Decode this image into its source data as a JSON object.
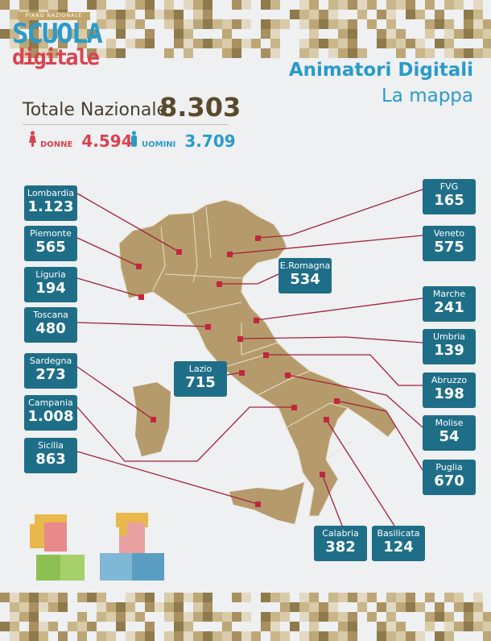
{
  "logo": {
    "band": "PIANO NAZIONALE",
    "line1": "SCUOLA",
    "line2": "digitale"
  },
  "title": {
    "line1": "Animatori Digitali",
    "line2": "La mappa"
  },
  "totals": {
    "label": "Totale Nazionale",
    "value": "8.303",
    "donne_label": "DONNE",
    "donne": "4.594",
    "uomini_label": "UOMINI",
    "uomini": "3.709"
  },
  "colors": {
    "box": "#1f6e87",
    "map": "#b59b6b",
    "line": "#a3213a",
    "women": "#d9434f",
    "men": "#2a9bc9"
  },
  "regions": [
    {
      "name": "Lombardia",
      "value": "1.123"
    },
    {
      "name": "Piemonte",
      "value": "565"
    },
    {
      "name": "Liguria",
      "value": "194"
    },
    {
      "name": "Toscana",
      "value": "480"
    },
    {
      "name": "Sardegna",
      "value": "273"
    },
    {
      "name": "Campania",
      "value": "1.008"
    },
    {
      "name": "Sicilia",
      "value": "863"
    },
    {
      "name": "FVG",
      "value": "165"
    },
    {
      "name": "Veneto",
      "value": "575"
    },
    {
      "name": "E.Romagna",
      "value": "534"
    },
    {
      "name": "Marche",
      "value": "241"
    },
    {
      "name": "Umbria",
      "value": "139"
    },
    {
      "name": "Abruzzo",
      "value": "198"
    },
    {
      "name": "Molise",
      "value": "54"
    },
    {
      "name": "Puglia",
      "value": "670"
    },
    {
      "name": "Lazio",
      "value": "715"
    },
    {
      "name": "Calabria",
      "value": "382"
    },
    {
      "name": "Basilicata",
      "value": "124"
    }
  ]
}
